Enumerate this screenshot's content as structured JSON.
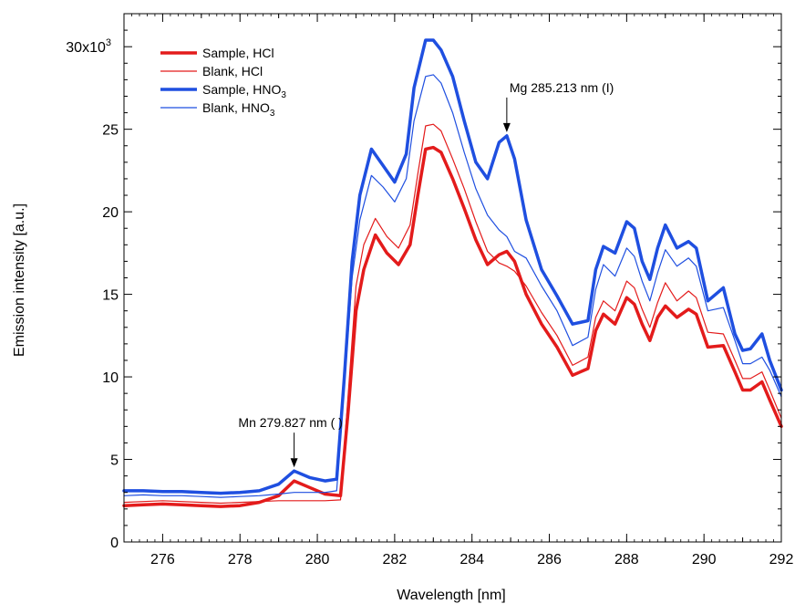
{
  "chart_data": {
    "type": "line",
    "title": "",
    "xlabel": "Wavelength [nm]",
    "ylabel": "Emission intensity [a.u.]",
    "xlim": [
      275,
      292
    ],
    "ylim": [
      0,
      32000
    ],
    "x_ticks": [
      276,
      278,
      280,
      282,
      284,
      286,
      288,
      290,
      292
    ],
    "y_ticks": [
      0,
      5000,
      10000,
      15000,
      20000,
      25000,
      30000
    ],
    "y_tick_labels": [
      "0",
      "5",
      "10",
      "15",
      "20",
      "25",
      "30x10"
    ],
    "y_exponent": "3",
    "grid": false,
    "legend_position": "top-left",
    "legend": [
      {
        "label": "Sample, HCl",
        "sub": "",
        "color": "#e31b1b",
        "width": 3.5
      },
      {
        "label": "Blank, HCl",
        "sub": "",
        "color": "#e31b1b",
        "width": 1.2
      },
      {
        "label": "Sample, HNO",
        "sub": "3",
        "color": "#1f4fe0",
        "width": 3.5
      },
      {
        "label": "Blank, HNO",
        "sub": "3",
        "color": "#1f4fe0",
        "width": 1.2
      }
    ],
    "annotations": [
      {
        "text": "Mn 279.827 nm ( )",
        "x": 279.4,
        "y": 4300
      },
      {
        "text": "Mg 285.213 nm (I)",
        "x": 284.9,
        "y": 24600
      }
    ],
    "series": [
      {
        "name": "Sample, HCl",
        "color": "#e31b1b",
        "width": 3.5,
        "points": [
          [
            275,
            2200
          ],
          [
            275.5,
            2250
          ],
          [
            276,
            2300
          ],
          [
            276.5,
            2250
          ],
          [
            277,
            2200
          ],
          [
            277.5,
            2150
          ],
          [
            278,
            2200
          ],
          [
            278.5,
            2400
          ],
          [
            279,
            2800
          ],
          [
            279.4,
            3700
          ],
          [
            279.8,
            3300
          ],
          [
            280.2,
            2900
          ],
          [
            280.6,
            2800
          ],
          [
            280.8,
            8000
          ],
          [
            281,
            14000
          ],
          [
            281.2,
            16500
          ],
          [
            281.5,
            18600
          ],
          [
            281.8,
            17500
          ],
          [
            282.1,
            16800
          ],
          [
            282.4,
            18000
          ],
          [
            282.6,
            21000
          ],
          [
            282.8,
            23800
          ],
          [
            283.0,
            23900
          ],
          [
            283.2,
            23600
          ],
          [
            283.5,
            22000
          ],
          [
            283.8,
            20200
          ],
          [
            284.1,
            18300
          ],
          [
            284.4,
            16800
          ],
          [
            284.7,
            17400
          ],
          [
            284.9,
            17600
          ],
          [
            285.1,
            17000
          ],
          [
            285.4,
            15000
          ],
          [
            285.8,
            13200
          ],
          [
            286.2,
            11800
          ],
          [
            286.6,
            10100
          ],
          [
            287.0,
            10500
          ],
          [
            287.2,
            12800
          ],
          [
            287.4,
            13800
          ],
          [
            287.7,
            13200
          ],
          [
            288.0,
            14800
          ],
          [
            288.2,
            14400
          ],
          [
            288.4,
            13200
          ],
          [
            288.6,
            12200
          ],
          [
            288.8,
            13600
          ],
          [
            289.0,
            14300
          ],
          [
            289.3,
            13600
          ],
          [
            289.6,
            14100
          ],
          [
            289.8,
            13800
          ],
          [
            290.1,
            11800
          ],
          [
            290.5,
            11900
          ],
          [
            290.8,
            10300
          ],
          [
            291.0,
            9200
          ],
          [
            291.2,
            9200
          ],
          [
            291.5,
            9700
          ],
          [
            291.7,
            8600
          ],
          [
            292,
            7000
          ]
        ]
      },
      {
        "name": "Blank, HCl",
        "color": "#e31b1b",
        "width": 1.2,
        "points": [
          [
            275,
            2400
          ],
          [
            275.5,
            2450
          ],
          [
            276,
            2500
          ],
          [
            276.5,
            2450
          ],
          [
            277,
            2400
          ],
          [
            277.5,
            2350
          ],
          [
            278,
            2400
          ],
          [
            278.5,
            2450
          ],
          [
            279,
            2500
          ],
          [
            279.4,
            2500
          ],
          [
            279.8,
            2500
          ],
          [
            280.2,
            2500
          ],
          [
            280.6,
            2550
          ],
          [
            280.8,
            9000
          ],
          [
            281,
            15500
          ],
          [
            281.2,
            18000
          ],
          [
            281.5,
            19600
          ],
          [
            281.8,
            18500
          ],
          [
            282.1,
            17800
          ],
          [
            282.4,
            19200
          ],
          [
            282.6,
            22300
          ],
          [
            282.8,
            25200
          ],
          [
            283.0,
            25300
          ],
          [
            283.2,
            24900
          ],
          [
            283.5,
            23200
          ],
          [
            283.8,
            21400
          ],
          [
            284.1,
            19400
          ],
          [
            284.4,
            17600
          ],
          [
            284.7,
            16900
          ],
          [
            284.9,
            16700
          ],
          [
            285.1,
            16400
          ],
          [
            285.4,
            15500
          ],
          [
            285.8,
            13900
          ],
          [
            286.2,
            12500
          ],
          [
            286.6,
            10700
          ],
          [
            287.0,
            11200
          ],
          [
            287.2,
            13600
          ],
          [
            287.4,
            14600
          ],
          [
            287.7,
            14000
          ],
          [
            288.0,
            15800
          ],
          [
            288.2,
            15400
          ],
          [
            288.4,
            14100
          ],
          [
            288.6,
            13000
          ],
          [
            288.8,
            14500
          ],
          [
            289.0,
            15700
          ],
          [
            289.3,
            14600
          ],
          [
            289.6,
            15200
          ],
          [
            289.8,
            14800
          ],
          [
            290.1,
            12700
          ],
          [
            290.5,
            12600
          ],
          [
            290.8,
            11000
          ],
          [
            291.0,
            9900
          ],
          [
            291.2,
            9900
          ],
          [
            291.5,
            10300
          ],
          [
            291.7,
            9200
          ],
          [
            292,
            7500
          ]
        ]
      },
      {
        "name": "Sample, HNO3",
        "color": "#1f4fe0",
        "width": 3.5,
        "points": [
          [
            275,
            3100
          ],
          [
            275.5,
            3100
          ],
          [
            276,
            3050
          ],
          [
            276.5,
            3050
          ],
          [
            277,
            3000
          ],
          [
            277.5,
            2950
          ],
          [
            278,
            3000
          ],
          [
            278.5,
            3100
          ],
          [
            279,
            3500
          ],
          [
            279.4,
            4300
          ],
          [
            279.8,
            3900
          ],
          [
            280.2,
            3700
          ],
          [
            280.5,
            3800
          ],
          [
            280.7,
            10000
          ],
          [
            280.9,
            17000
          ],
          [
            281.1,
            21000
          ],
          [
            281.4,
            23800
          ],
          [
            281.7,
            22800
          ],
          [
            282.0,
            21800
          ],
          [
            282.3,
            23500
          ],
          [
            282.5,
            27500
          ],
          [
            282.8,
            30400
          ],
          [
            283.0,
            30400
          ],
          [
            283.2,
            29800
          ],
          [
            283.5,
            28200
          ],
          [
            283.8,
            25500
          ],
          [
            284.1,
            23000
          ],
          [
            284.4,
            22000
          ],
          [
            284.7,
            24200
          ],
          [
            284.9,
            24600
          ],
          [
            285.1,
            23200
          ],
          [
            285.4,
            19500
          ],
          [
            285.8,
            16500
          ],
          [
            286.2,
            14900
          ],
          [
            286.6,
            13200
          ],
          [
            287.0,
            13400
          ],
          [
            287.2,
            16500
          ],
          [
            287.4,
            17900
          ],
          [
            287.7,
            17500
          ],
          [
            288.0,
            19400
          ],
          [
            288.2,
            19000
          ],
          [
            288.4,
            17000
          ],
          [
            288.6,
            15900
          ],
          [
            288.8,
            17800
          ],
          [
            289.0,
            19200
          ],
          [
            289.3,
            17800
          ],
          [
            289.6,
            18200
          ],
          [
            289.8,
            17800
          ],
          [
            290.1,
            14600
          ],
          [
            290.5,
            15400
          ],
          [
            290.8,
            12600
          ],
          [
            291.0,
            11600
          ],
          [
            291.2,
            11700
          ],
          [
            291.5,
            12600
          ],
          [
            291.7,
            11000
          ],
          [
            292,
            9200
          ]
        ]
      },
      {
        "name": "Blank, HNO3",
        "color": "#1f4fe0",
        "width": 1.2,
        "points": [
          [
            275,
            2800
          ],
          [
            275.5,
            2850
          ],
          [
            276,
            2800
          ],
          [
            276.5,
            2800
          ],
          [
            277,
            2750
          ],
          [
            277.5,
            2700
          ],
          [
            278,
            2750
          ],
          [
            278.5,
            2800
          ],
          [
            279,
            2900
          ],
          [
            279.4,
            3000
          ],
          [
            279.8,
            3000
          ],
          [
            280.2,
            3000
          ],
          [
            280.5,
            3100
          ],
          [
            280.7,
            9500
          ],
          [
            280.9,
            16000
          ],
          [
            281.1,
            19500
          ],
          [
            281.4,
            22200
          ],
          [
            281.7,
            21500
          ],
          [
            282.0,
            20600
          ],
          [
            282.3,
            22000
          ],
          [
            282.5,
            25500
          ],
          [
            282.8,
            28200
          ],
          [
            283.0,
            28300
          ],
          [
            283.2,
            27800
          ],
          [
            283.5,
            26000
          ],
          [
            283.8,
            23600
          ],
          [
            284.1,
            21400
          ],
          [
            284.4,
            19800
          ],
          [
            284.7,
            18900
          ],
          [
            284.9,
            18500
          ],
          [
            285.1,
            17600
          ],
          [
            285.4,
            17200
          ],
          [
            285.8,
            15500
          ],
          [
            286.2,
            14000
          ],
          [
            286.6,
            11900
          ],
          [
            287.0,
            12400
          ],
          [
            287.2,
            15300
          ],
          [
            287.4,
            16800
          ],
          [
            287.7,
            16100
          ],
          [
            288.0,
            17800
          ],
          [
            288.2,
            17300
          ],
          [
            288.4,
            15800
          ],
          [
            288.6,
            14600
          ],
          [
            288.8,
            16300
          ],
          [
            289.0,
            17700
          ],
          [
            289.3,
            16700
          ],
          [
            289.6,
            17200
          ],
          [
            289.8,
            16700
          ],
          [
            290.1,
            14000
          ],
          [
            290.5,
            14200
          ],
          [
            290.8,
            12200
          ],
          [
            291.0,
            10800
          ],
          [
            291.2,
            10800
          ],
          [
            291.5,
            11200
          ],
          [
            291.7,
            10400
          ],
          [
            292,
            8800
          ]
        ]
      }
    ]
  }
}
